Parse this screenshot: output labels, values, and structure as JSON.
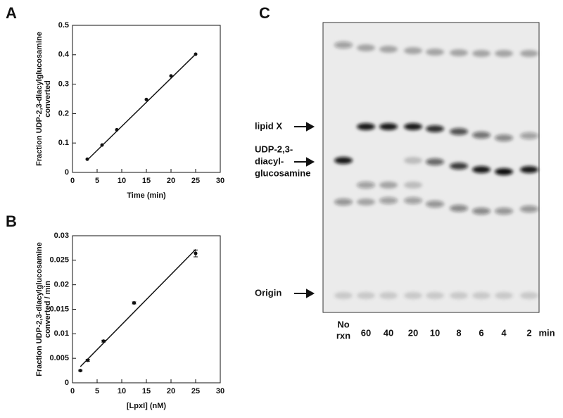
{
  "chart_data": [
    {
      "type": "scatter",
      "label": "A",
      "xlabel": "Time (min)",
      "ylabel": [
        "Fraction UDP-2,3-diacylglucosamine",
        "converted"
      ],
      "x": [
        3,
        6,
        9,
        15,
        20,
        25
      ],
      "values": [
        0.045,
        0.093,
        0.145,
        0.248,
        0.328,
        0.402
      ],
      "fit": {
        "x": [
          3,
          25
        ],
        "y": [
          0.042,
          0.402
        ]
      },
      "xlim": [
        0,
        30
      ],
      "xticks": [
        0,
        5,
        10,
        15,
        20,
        25,
        30
      ],
      "ylim": [
        0,
        0.5
      ],
      "yticks": [
        0,
        0.1,
        0.2,
        0.3,
        0.4,
        0.5
      ]
    },
    {
      "type": "scatter",
      "label": "B",
      "xlabel": "[LpxI] (nM)",
      "ylabel": [
        "Fraction UDP-2,3-diacylglucosamine",
        "converted / min"
      ],
      "x": [
        1.6,
        3.1,
        6.3,
        12.5,
        25
      ],
      "values": [
        0.0025,
        0.0046,
        0.0085,
        0.0163,
        0.0264
      ],
      "errors": [
        0.0001,
        0.0002,
        0.0002,
        0.0002,
        0.0007
      ],
      "fit": {
        "x": [
          1.6,
          25
        ],
        "y": [
          0.0033,
          0.0272
        ]
      },
      "xlim": [
        0,
        30
      ],
      "xticks": [
        0,
        5,
        10,
        15,
        20,
        25,
        30
      ],
      "ylim": [
        0,
        0.03
      ],
      "yticks": [
        0,
        0.005,
        0.01,
        0.015,
        0.02,
        0.025,
        0.03
      ]
    }
  ],
  "gel": {
    "label": "C",
    "lipid_x": "lipid X",
    "substrate": [
      "UDP-2,3-",
      "diacyl-",
      "glucosamine"
    ],
    "origin": "Origin",
    "lanes": [
      [
        "No",
        "rxn"
      ],
      "60",
      "40",
      "20",
      "10",
      "8",
      "6",
      "4",
      "2"
    ],
    "lane_unit": "min"
  }
}
